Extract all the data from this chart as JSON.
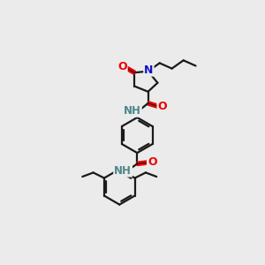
{
  "background_color": "#ebebeb",
  "bond_color": "#1a1a1a",
  "atom_colors": {
    "O": "#ee0000",
    "N": "#1111cc",
    "NH": "#4a8888",
    "C": "#1a1a1a"
  },
  "figsize": [
    3.0,
    3.0
  ],
  "dpi": 100
}
